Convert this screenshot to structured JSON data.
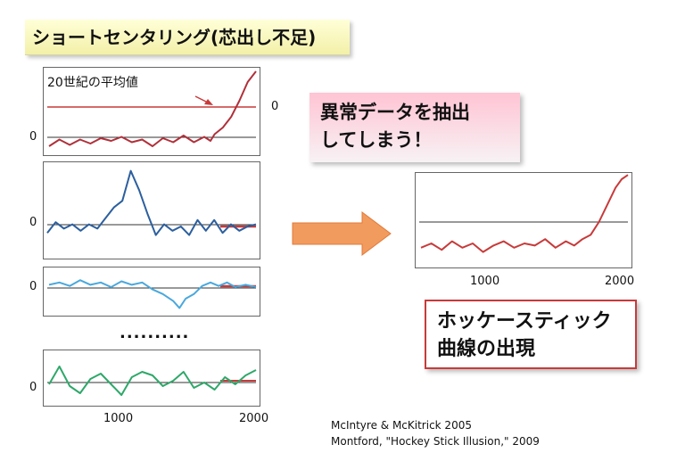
{
  "title": "ショートセンタリング(芯出し不足)",
  "panel1": {
    "annotation": "20世紀の平均値",
    "zero_label": "0",
    "right_zero_label": "0",
    "series": [
      [
        0,
        -0.2
      ],
      [
        0.05,
        0.05
      ],
      [
        0.1,
        -0.15
      ],
      [
        0.15,
        0.05
      ],
      [
        0.2,
        -0.1
      ],
      [
        0.25,
        0.1
      ],
      [
        0.3,
        0.0
      ],
      [
        0.35,
        0.15
      ],
      [
        0.4,
        -0.05
      ],
      [
        0.45,
        0.05
      ],
      [
        0.5,
        -0.2
      ],
      [
        0.55,
        0.1
      ],
      [
        0.6,
        -0.05
      ],
      [
        0.65,
        0.2
      ],
      [
        0.7,
        -0.05
      ],
      [
        0.75,
        0.15
      ],
      [
        0.78,
        0.0
      ],
      [
        0.8,
        0.25
      ],
      [
        0.84,
        0.5
      ],
      [
        0.88,
        0.9
      ],
      [
        0.92,
        1.5
      ],
      [
        0.96,
        2.2
      ],
      [
        1.0,
        2.6
      ]
    ]
  },
  "panel2": {
    "zero_label": "0",
    "series": [
      [
        0,
        -0.3
      ],
      [
        0.04,
        0.2
      ],
      [
        0.08,
        -0.1
      ],
      [
        0.12,
        0.1
      ],
      [
        0.16,
        -0.2
      ],
      [
        0.2,
        0.1
      ],
      [
        0.24,
        -0.1
      ],
      [
        0.28,
        0.4
      ],
      [
        0.32,
        0.9
      ],
      [
        0.36,
        1.2
      ],
      [
        0.4,
        2.6
      ],
      [
        0.44,
        1.7
      ],
      [
        0.48,
        0.6
      ],
      [
        0.52,
        -0.4
      ],
      [
        0.56,
        0.1
      ],
      [
        0.6,
        -0.2
      ],
      [
        0.64,
        0.0
      ],
      [
        0.68,
        -0.4
      ],
      [
        0.72,
        0.3
      ],
      [
        0.76,
        -0.2
      ],
      [
        0.8,
        0.3
      ],
      [
        0.84,
        -0.3
      ],
      [
        0.88,
        0.1
      ],
      [
        0.92,
        -0.2
      ],
      [
        0.96,
        0.0
      ],
      [
        1.0,
        0.1
      ]
    ]
  },
  "panel3": {
    "zero_label": "0",
    "series": [
      [
        0,
        0.1
      ],
      [
        0.05,
        0.2
      ],
      [
        0.1,
        0.05
      ],
      [
        0.15,
        0.3
      ],
      [
        0.2,
        0.1
      ],
      [
        0.25,
        0.2
      ],
      [
        0.3,
        0.0
      ],
      [
        0.35,
        0.25
      ],
      [
        0.4,
        0.1
      ],
      [
        0.45,
        0.2
      ],
      [
        0.5,
        -0.1
      ],
      [
        0.55,
        -0.3
      ],
      [
        0.6,
        -0.6
      ],
      [
        0.63,
        -0.9
      ],
      [
        0.66,
        -0.5
      ],
      [
        0.7,
        -0.3
      ],
      [
        0.74,
        0.05
      ],
      [
        0.78,
        0.2
      ],
      [
        0.82,
        0.05
      ],
      [
        0.86,
        0.2
      ],
      [
        0.9,
        0.0
      ],
      [
        0.95,
        0.1
      ],
      [
        1.0,
        0.0
      ]
    ]
  },
  "dots": "..........",
  "panel4": {
    "zero_label": "0",
    "series": [
      [
        0,
        -0.1
      ],
      [
        0.05,
        0.9
      ],
      [
        0.1,
        -0.2
      ],
      [
        0.15,
        -0.6
      ],
      [
        0.2,
        0.2
      ],
      [
        0.25,
        0.5
      ],
      [
        0.3,
        -0.1
      ],
      [
        0.35,
        -0.7
      ],
      [
        0.4,
        0.3
      ],
      [
        0.45,
        0.6
      ],
      [
        0.5,
        0.4
      ],
      [
        0.55,
        -0.2
      ],
      [
        0.6,
        0.1
      ],
      [
        0.65,
        0.6
      ],
      [
        0.7,
        -0.3
      ],
      [
        0.75,
        0.0
      ],
      [
        0.8,
        -0.4
      ],
      [
        0.85,
        0.3
      ],
      [
        0.9,
        -0.1
      ],
      [
        0.95,
        0.4
      ],
      [
        1.0,
        0.7
      ]
    ],
    "x_ticks": [
      "1000",
      "2000"
    ]
  },
  "callout_top": [
    "異常データを抽出",
    "してしまう！"
  ],
  "result_panel": {
    "series": [
      [
        0,
        -0.6
      ],
      [
        0.05,
        -0.5
      ],
      [
        0.1,
        -0.65
      ],
      [
        0.15,
        -0.45
      ],
      [
        0.2,
        -0.6
      ],
      [
        0.25,
        -0.5
      ],
      [
        0.3,
        -0.7
      ],
      [
        0.35,
        -0.55
      ],
      [
        0.4,
        -0.45
      ],
      [
        0.45,
        -0.6
      ],
      [
        0.5,
        -0.5
      ],
      [
        0.55,
        -0.55
      ],
      [
        0.6,
        -0.4
      ],
      [
        0.65,
        -0.6
      ],
      [
        0.7,
        -0.45
      ],
      [
        0.74,
        -0.55
      ],
      [
        0.78,
        -0.4
      ],
      [
        0.82,
        -0.3
      ],
      [
        0.86,
        0.0
      ],
      [
        0.9,
        0.4
      ],
      [
        0.94,
        0.8
      ],
      [
        0.97,
        1.0
      ],
      [
        1.0,
        1.1
      ]
    ],
    "x_ticks": [
      "1000",
      "2000"
    ]
  },
  "callout_bottom": [
    "ホッケースティック",
    "曲線の出現"
  ],
  "references": [
    "McIntyre & McKitrick 2005",
    "Montford, \"Hockey Stick Illusion,\" 2009"
  ],
  "colors": {
    "panel1_line": "#b0303a",
    "panel2_line": "#2c5f9e",
    "panel3_line": "#4aa8dd",
    "panel4_line": "#2ea86a",
    "result_line": "#c83a3a",
    "mean_line": "#c83a3a",
    "arrow": "#f29b5e"
  }
}
